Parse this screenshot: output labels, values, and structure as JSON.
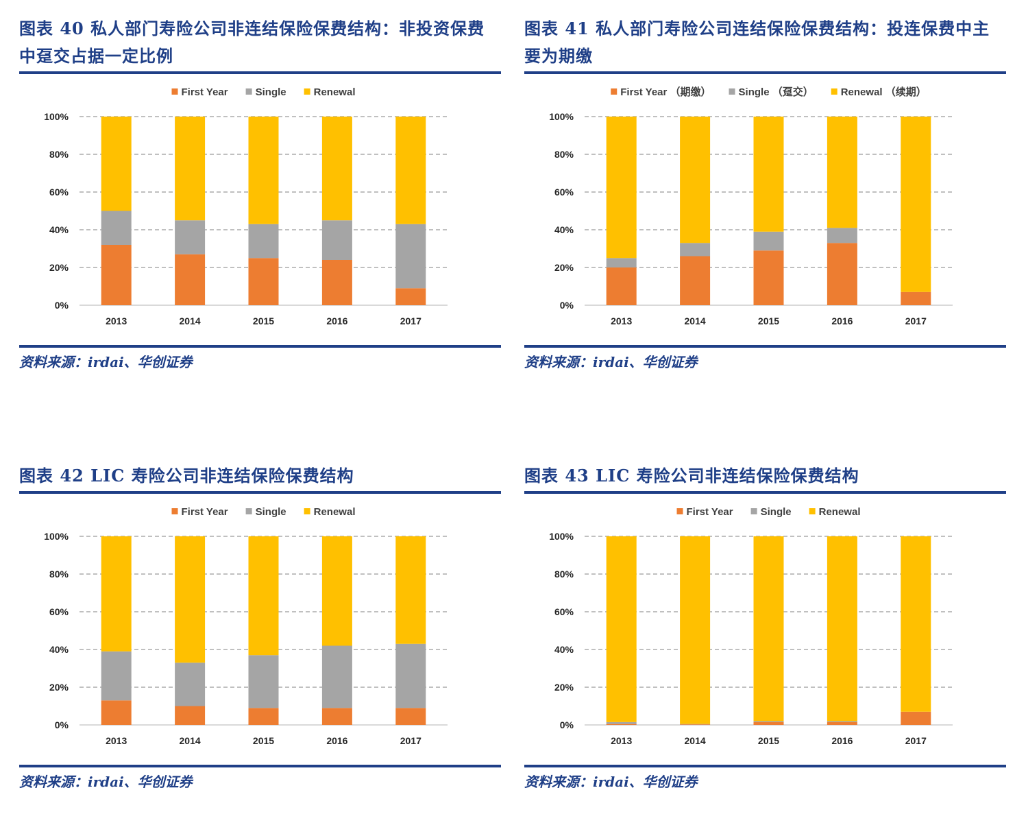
{
  "colors": {
    "first_year": "#ed7d31",
    "single": "#a5a5a5",
    "renewal": "#ffc000",
    "accent": "#1f3f87"
  },
  "panels": [
    {
      "title": "图表 40 私人部门寿险公司非连结保险保费结构：非投资保费中趸交占据一定比例",
      "source": "资料来源：irdai、华创证券",
      "chart_data": {
        "type": "bar",
        "stacked": true,
        "categories": [
          "2013",
          "2014",
          "2015",
          "2016",
          "2017"
        ],
        "series": [
          {
            "name": "First Year",
            "values": [
              32,
              27,
              25,
              24,
              9
            ]
          },
          {
            "name": "Single",
            "values": [
              18,
              18,
              18,
              21,
              34
            ]
          },
          {
            "name": "Renewal",
            "values": [
              50,
              55,
              57,
              55,
              57
            ]
          }
        ],
        "yticks": [
          "0%",
          "20%",
          "40%",
          "60%",
          "80%",
          "100%"
        ],
        "ylim": [
          0,
          100
        ],
        "grid": true,
        "legend": "top"
      }
    },
    {
      "title": "图表 41 私人部门寿险公司连结保险保费结构：投连保费中主要为期缴",
      "source": "资料来源：irdai、华创证券",
      "chart_data": {
        "type": "bar",
        "stacked": true,
        "categories": [
          "2013",
          "2014",
          "2015",
          "2016",
          "2017"
        ],
        "series": [
          {
            "name": "First Year （期缴）",
            "values": [
              20,
              26,
              29,
              33,
              7
            ]
          },
          {
            "name": "Single （趸交）",
            "values": [
              5,
              7,
              10,
              8,
              0
            ]
          },
          {
            "name": "Renewal （续期）",
            "values": [
              75,
              67,
              61,
              59,
              93
            ]
          }
        ],
        "yticks": [
          "0%",
          "20%",
          "40%",
          "60%",
          "80%",
          "100%"
        ],
        "ylim": [
          0,
          100
        ],
        "grid": true,
        "legend": "top"
      }
    },
    {
      "title": "图表 42 LIC 寿险公司非连结保险保费结构",
      "source": "资料来源：irdai、华创证券",
      "chart_data": {
        "type": "bar",
        "stacked": true,
        "categories": [
          "2013",
          "2014",
          "2015",
          "2016",
          "2017"
        ],
        "series": [
          {
            "name": "First Year",
            "values": [
              13,
              10,
              9,
              9,
              9
            ]
          },
          {
            "name": "Single",
            "values": [
              26,
              23,
              28,
              33,
              34
            ]
          },
          {
            "name": "Renewal",
            "values": [
              61,
              67,
              63,
              58,
              57
            ]
          }
        ],
        "yticks": [
          "0%",
          "20%",
          "40%",
          "60%",
          "80%",
          "100%"
        ],
        "ylim": [
          0,
          100
        ],
        "grid": true,
        "legend": "top"
      }
    },
    {
      "title": "图表 43 LIC 寿险公司非连结保险保费结构",
      "source": "资料来源：irdai、华创证券",
      "chart_data": {
        "type": "bar",
        "stacked": true,
        "categories": [
          "2013",
          "2014",
          "2015",
          "2016",
          "2017"
        ],
        "series": [
          {
            "name": "First Year",
            "values": [
              0.5,
              0.3,
              1.5,
              1.5,
              7
            ]
          },
          {
            "name": "Single",
            "values": [
              1,
              0.2,
              0.5,
              0.5,
              0
            ]
          },
          {
            "name": "Renewal",
            "values": [
              98.5,
              99.5,
              98,
              98,
              93
            ]
          }
        ],
        "yticks": [
          "0%",
          "20%",
          "40%",
          "60%",
          "80%",
          "100%"
        ],
        "ylim": [
          0,
          100
        ],
        "grid": true,
        "legend": "top"
      }
    }
  ]
}
